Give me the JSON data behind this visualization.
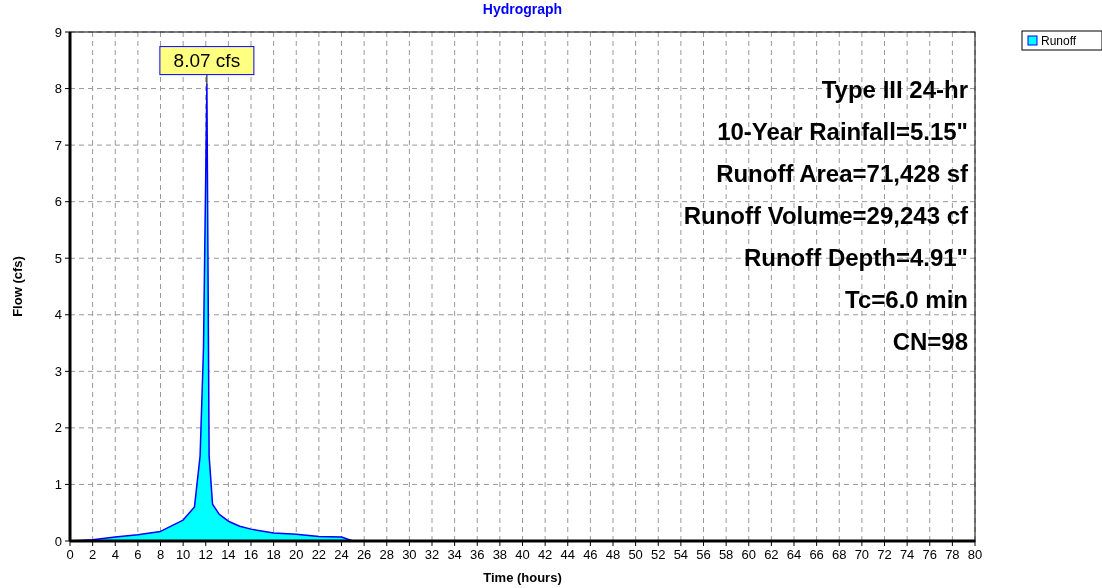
{
  "chart_data": {
    "type": "area",
    "title": "Hydrograph",
    "xlabel": "Time  (hours)",
    "ylabel": "Flow  (cfs)",
    "x": [
      0,
      2,
      4,
      6,
      8,
      10,
      11,
      11.5,
      11.8,
      12.1,
      12.3,
      12.6,
      13.2,
      14,
      15,
      16,
      18,
      20,
      22,
      24,
      25,
      80
    ],
    "series": [
      {
        "name": "Runoff",
        "color": "#00ffff",
        "values": [
          0,
          0.02,
          0.07,
          0.11,
          0.17,
          0.37,
          0.6,
          1.5,
          3.4,
          8.07,
          1.5,
          0.65,
          0.47,
          0.35,
          0.26,
          0.21,
          0.14,
          0.12,
          0.08,
          0.07,
          0,
          0
        ]
      }
    ],
    "xlim": [
      0,
      80
    ],
    "xticks": [
      0,
      2,
      4,
      6,
      8,
      10,
      12,
      14,
      16,
      18,
      20,
      22,
      24,
      26,
      28,
      30,
      32,
      34,
      36,
      38,
      40,
      42,
      44,
      46,
      48,
      50,
      52,
      54,
      56,
      58,
      60,
      62,
      64,
      66,
      68,
      70,
      72,
      74,
      76,
      78,
      80
    ],
    "ylim": [
      0,
      9
    ],
    "yticks": [
      0,
      1,
      2,
      3,
      4,
      5,
      6,
      7,
      8,
      9
    ],
    "grid": true,
    "legend": "top right",
    "annotations": [
      {
        "text": "8.07 cfs",
        "x": 12.1,
        "y": 8.07
      },
      "Type III 24-hr",
      "10-Year Rainfall=5.15\"",
      "Runoff Area=71,428 sf",
      "Runoff Volume=29,243 cf",
      "Runoff Depth=4.91\"",
      "Tc=6.0 min",
      "CN=98"
    ]
  }
}
